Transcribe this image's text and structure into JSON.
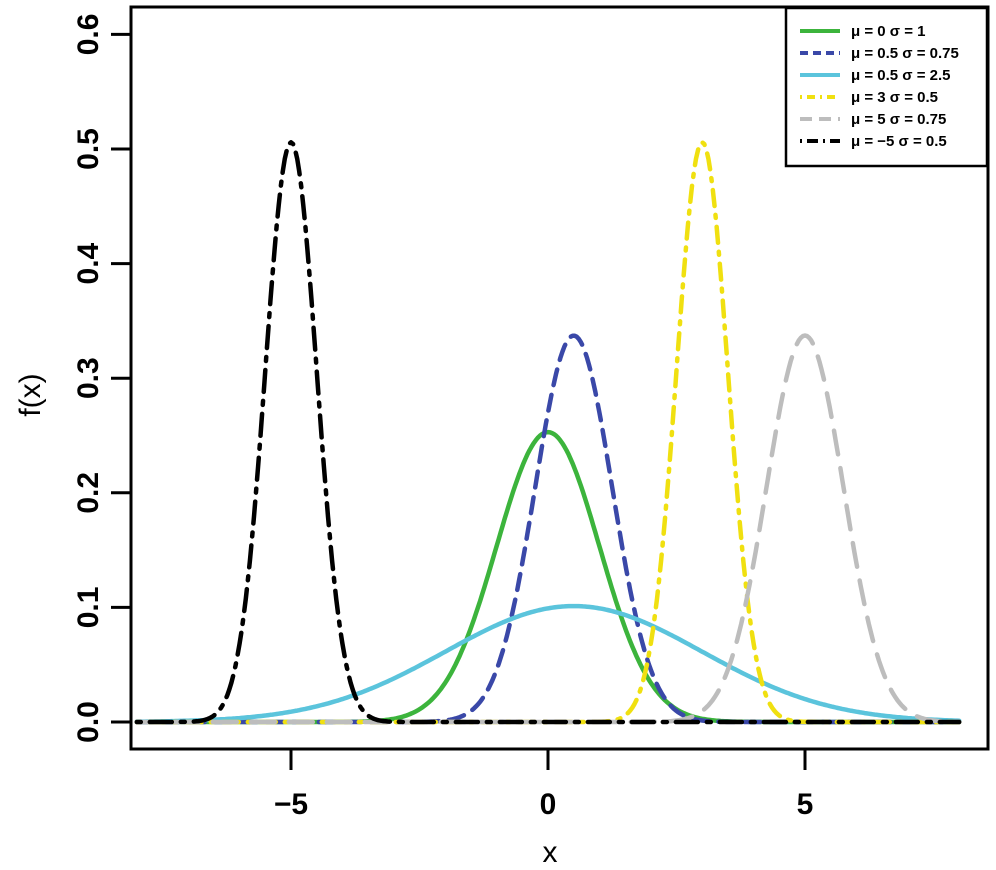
{
  "chart_data": {
    "type": "line",
    "title": "",
    "xlabel": "x",
    "ylabel": "f(x)",
    "xlim": [
      -8.2,
      8.6
    ],
    "ylim": [
      -0.023,
      0.625
    ],
    "x_ticks": [
      -5,
      0,
      5
    ],
    "x_tick_labels": [
      "−5",
      "0",
      "5"
    ],
    "y_ticks": [
      0.0,
      0.1,
      0.2,
      0.3,
      0.4,
      0.5,
      0.6
    ],
    "y_tick_labels": [
      "0.0",
      "0.1",
      "0.2",
      "0.3",
      "0.4",
      "0.5",
      "0.6"
    ],
    "grid": false,
    "legend_position": "top-right",
    "x_domain": [
      -8,
      8
    ],
    "density_scale": 0.634,
    "series": [
      {
        "name": "μ = 0  σ = 1",
        "mu": 0,
        "sigma": 1,
        "color": "#3cb43c",
        "dash": "",
        "peak": 0.253
      },
      {
        "name": "μ = 0.5  σ = 0.75",
        "mu": 0.5,
        "sigma": 0.75,
        "color": "#3a48a8",
        "dash": "16 10",
        "peak": 0.337
      },
      {
        "name": "μ = 0.5  σ = 2.5",
        "mu": 0.5,
        "sigma": 2.5,
        "color": "#5bc4dc",
        "dash": "",
        "peak": 0.101
      },
      {
        "name": "μ = 3  σ = 0.5",
        "mu": 3,
        "sigma": 0.5,
        "color": "#f0e010",
        "dash": "3 9 16 9",
        "peak": 0.506
      },
      {
        "name": "μ = 5  σ = 0.75",
        "mu": 5,
        "sigma": 0.75,
        "color": "#bdbdbd",
        "dash": "24 14",
        "peak": 0.337
      },
      {
        "name": "μ = −5  σ = 0.5",
        "mu": -5,
        "sigma": 0.5,
        "color": "#000000",
        "dash": "4 9 22 9",
        "peak": 0.506
      }
    ]
  }
}
